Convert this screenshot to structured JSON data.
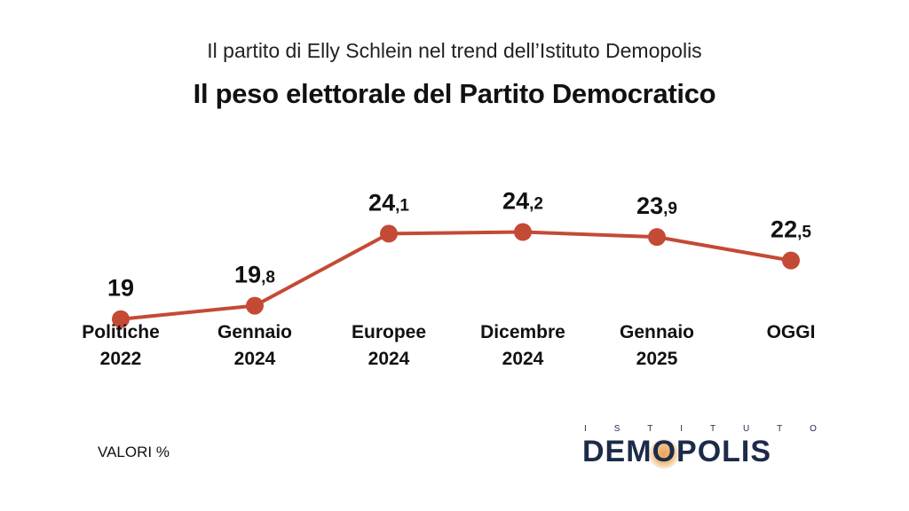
{
  "header": {
    "subtitle": "Il partito di Elly Schlein nel trend dell’Istituto Demopolis",
    "title": "Il peso elettorale del Partito Democratico"
  },
  "chart_data": {
    "type": "line",
    "categories": [
      [
        "Politiche",
        "2022"
      ],
      [
        "Gennaio",
        "2024"
      ],
      [
        "Europee",
        "2024"
      ],
      [
        "Dicembre",
        "2024"
      ],
      [
        "Gennaio",
        "2025"
      ],
      [
        "OGGI"
      ]
    ],
    "series": [
      {
        "values": [
          19,
          19.8,
          24.1,
          24.2,
          23.9,
          22.5
        ],
        "labels": [
          {
            "int": "19",
            "dec": ""
          },
          {
            "int": "19",
            "dec": ",8"
          },
          {
            "int": "24",
            "dec": ",1"
          },
          {
            "int": "24",
            "dec": ",2"
          },
          {
            "int": "23",
            "dec": ",9"
          },
          {
            "int": "22",
            "dec": ",5"
          }
        ]
      }
    ],
    "ylim": [
      13,
      30
    ],
    "grid": false,
    "legend": "none",
    "color": "#c44a36"
  },
  "footer": {
    "unit_note": "VALORI %"
  },
  "logo": {
    "top_letters": [
      "I",
      "S",
      "T",
      "I",
      "T",
      "U",
      "T",
      "O"
    ],
    "pre": "DEM",
    "o": "O",
    "post": "POLIS",
    "color": "#1c2b4a"
  }
}
